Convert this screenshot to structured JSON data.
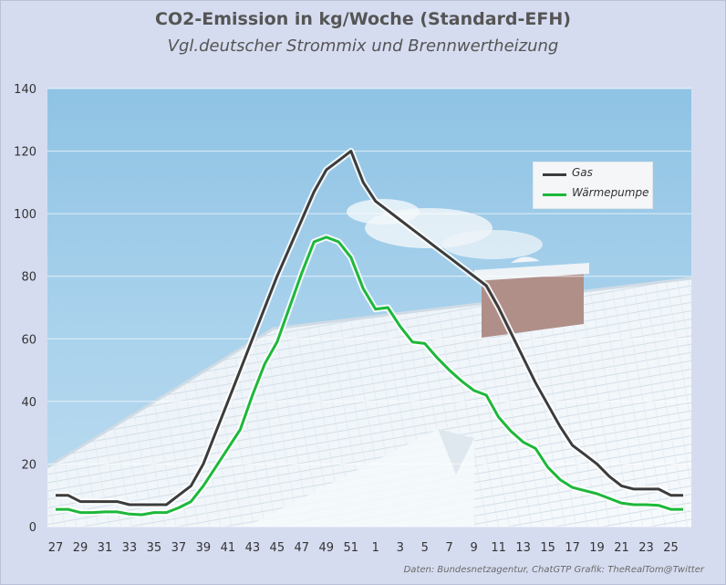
{
  "title": "CO2-Emission in kg/Woche (Standard-EFH)",
  "subtitle": "Vgl.deutscher Strommix und Brennwertheizung",
  "footer": "Daten: Bundesnetzagentur, ChatGTP  Grafik: TheRealTom@Twitter",
  "colors": {
    "gas": "#3c3c3c",
    "waermepumpe": "#1db83a",
    "background": "#d6dcf0"
  },
  "chart_data": {
    "type": "line",
    "title": "CO2-Emission in kg/Woche (Standard-EFH)",
    "subtitle": "Vgl.deutscher Strommix und Brennwertheizung",
    "xlabel": "",
    "ylabel": "",
    "ylim": [
      0,
      140
    ],
    "yticks": [
      0,
      20,
      40,
      60,
      80,
      100,
      120,
      140
    ],
    "grid": true,
    "legend_position": "top-right",
    "x": [
      "27",
      "28",
      "29",
      "30",
      "31",
      "32",
      "33",
      "34",
      "35",
      "36",
      "37",
      "38",
      "39",
      "40",
      "41",
      "42",
      "43",
      "44",
      "45",
      "46",
      "47",
      "48",
      "49",
      "50",
      "51",
      "52",
      "1",
      "2",
      "3",
      "4",
      "5",
      "6",
      "7",
      "8",
      "9",
      "10",
      "11",
      "12",
      "13",
      "14",
      "15",
      "16",
      "17",
      "18",
      "19",
      "20",
      "21",
      "22",
      "23",
      "24",
      "25",
      "26"
    ],
    "xticks": [
      "27",
      "29",
      "31",
      "33",
      "35",
      "37",
      "39",
      "41",
      "43",
      "45",
      "47",
      "49",
      "51",
      "1",
      "3",
      "5",
      "7",
      "9",
      "11",
      "13",
      "15",
      "17",
      "19",
      "21",
      "23",
      "25"
    ],
    "series": [
      {
        "name": "Gas",
        "values": [
          10,
          10,
          8,
          8,
          8,
          8,
          7,
          7,
          7,
          7,
          10,
          13,
          20,
          30,
          40,
          50,
          60,
          70,
          80,
          89,
          98,
          107,
          114,
          117,
          120,
          110,
          104,
          101,
          98,
          95,
          92,
          89,
          86,
          83,
          80,
          77,
          70,
          62,
          54,
          46,
          39,
          32,
          26,
          23,
          20,
          16,
          13,
          12,
          12,
          12,
          10,
          10
        ]
      },
      {
        "name": "Wärmepumpe",
        "values": [
          5.5,
          5.5,
          4.5,
          4.5,
          4.7,
          4.7,
          4,
          3.8,
          4.5,
          4.5,
          6,
          8,
          13,
          19,
          25,
          31,
          42,
          52,
          59,
          70,
          81,
          91,
          92.5,
          91,
          86,
          76,
          69.5,
          70,
          64,
          59,
          58.5,
          54,
          50,
          46.5,
          43.5,
          42,
          35,
          30.5,
          27,
          25,
          19,
          15,
          12.5,
          11.5,
          10.5,
          9,
          7.5,
          7,
          7,
          6.8,
          5.5,
          5.5
        ]
      }
    ]
  }
}
